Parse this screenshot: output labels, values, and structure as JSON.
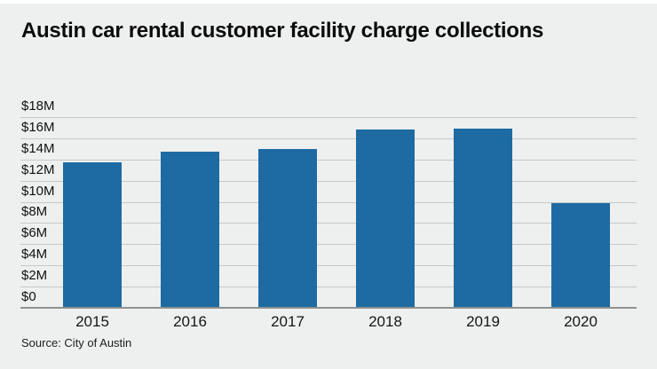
{
  "header": {
    "title": "Austin car rental customer facility charge collections"
  },
  "footer": {
    "source": "Source: City of Austin"
  },
  "chart_data": {
    "type": "bar",
    "title": "Austin car rental customer facility charge collections",
    "categories": [
      "2015",
      "2016",
      "2017",
      "2018",
      "2019",
      "2020"
    ],
    "values": [
      13.7,
      14.7,
      15.0,
      16.8,
      16.9,
      9.9
    ],
    "value_unit": "USD millions",
    "ylim": [
      0,
      18
    ],
    "ytick_interval": 2,
    "ytick_labels": [
      "$18M",
      "$16M",
      "$14M",
      "$12M",
      "$10M",
      "$8M",
      "$6M",
      "$4M",
      "$2M",
      "$0"
    ],
    "grid": "horizontal",
    "legend": "none",
    "source": "Source: City of Austin",
    "colors": {
      "bar": "#1e6ba3",
      "background": "#eef0ef",
      "gridline": "#c5c9c8",
      "baseline": "#8d918f",
      "text": "#101010"
    }
  }
}
